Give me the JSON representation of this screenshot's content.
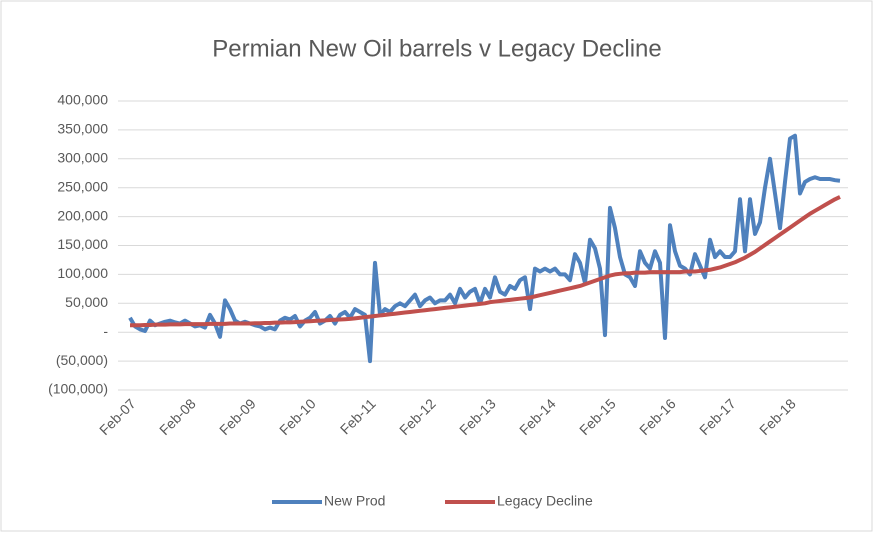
{
  "chart_data": {
    "type": "line",
    "title": "Permian New Oil barrels v Legacy Decline",
    "categories": [
      "Feb-07",
      null,
      null,
      null,
      null,
      null,
      null,
      null,
      null,
      null,
      null,
      null,
      "Feb-08",
      null,
      null,
      null,
      null,
      null,
      null,
      null,
      null,
      null,
      null,
      null,
      "Feb-09",
      null,
      null,
      null,
      null,
      null,
      null,
      null,
      null,
      null,
      null,
      null,
      "Feb-10",
      null,
      null,
      null,
      null,
      null,
      null,
      null,
      null,
      null,
      null,
      null,
      "Feb-11",
      null,
      null,
      null,
      null,
      null,
      null,
      null,
      null,
      null,
      null,
      null,
      "Feb-12",
      null,
      null,
      null,
      null,
      null,
      null,
      null,
      null,
      null,
      null,
      null,
      "Feb-13",
      null,
      null,
      null,
      null,
      null,
      null,
      null,
      null,
      null,
      null,
      null,
      "Feb-14",
      null,
      null,
      null,
      null,
      null,
      null,
      null,
      null,
      null,
      null,
      null,
      "Feb-15",
      null,
      null,
      null,
      null,
      null,
      null,
      null,
      null,
      null,
      null,
      null,
      "Feb-16",
      null,
      null,
      null,
      null,
      null,
      null,
      null,
      null,
      null,
      null,
      null,
      "Feb-17",
      null,
      null,
      null,
      null,
      null,
      null,
      null,
      null,
      null,
      null,
      null,
      "Feb-18",
      null,
      null,
      null,
      null,
      null,
      null,
      null,
      null,
      null,
      null
    ],
    "series": [
      {
        "name": "New Prod",
        "color": "#4f81bd",
        "values": [
          25000,
          10000,
          5000,
          2000,
          20000,
          12000,
          15000,
          18000,
          20000,
          17000,
          15000,
          20000,
          15000,
          10000,
          12000,
          8000,
          30000,
          15000,
          -8000,
          55000,
          40000,
          20000,
          15000,
          18000,
          15000,
          12000,
          10000,
          5000,
          8000,
          5000,
          20000,
          25000,
          22000,
          28000,
          10000,
          20000,
          25000,
          35000,
          15000,
          20000,
          28000,
          15000,
          30000,
          35000,
          25000,
          40000,
          35000,
          30000,
          -50000,
          120000,
          30000,
          40000,
          35000,
          45000,
          50000,
          45000,
          55000,
          65000,
          45000,
          55000,
          60000,
          50000,
          55000,
          55000,
          65000,
          50000,
          75000,
          60000,
          70000,
          75000,
          50000,
          75000,
          60000,
          95000,
          70000,
          65000,
          80000,
          75000,
          90000,
          95000,
          40000,
          110000,
          105000,
          110000,
          105000,
          110000,
          100000,
          100000,
          90000,
          135000,
          120000,
          85000,
          160000,
          145000,
          110000,
          -5000,
          215000,
          180000,
          130000,
          100000,
          95000,
          80000,
          140000,
          120000,
          110000,
          140000,
          120000,
          -10000,
          185000,
          140000,
          115000,
          110000,
          100000,
          135000,
          115000,
          95000,
          160000,
          130000,
          140000,
          130000,
          130000,
          140000,
          230000,
          140000,
          230000,
          170000,
          190000,
          250000,
          300000,
          240000,
          180000,
          260000,
          335000,
          340000,
          240000,
          260000,
          265000,
          268000,
          265000,
          265000,
          265000,
          263000,
          262000
        ]
      },
      {
        "name": "Legacy Decline",
        "color": "#c0504d",
        "values": [
          12000,
          12000,
          12000,
          12500,
          12500,
          13000,
          13000,
          13000,
          13500,
          13500,
          13500,
          14000,
          14000,
          14000,
          14000,
          14000,
          14500,
          14500,
          14500,
          14500,
          15000,
          15000,
          15000,
          15000,
          15000,
          15500,
          15500,
          16000,
          16000,
          16500,
          16500,
          17000,
          17000,
          17500,
          18000,
          18500,
          19000,
          19500,
          20000,
          20500,
          21000,
          21500,
          22000,
          22500,
          23000,
          24000,
          25000,
          26000,
          27000,
          28000,
          29000,
          30000,
          31000,
          32000,
          33000,
          34000,
          35000,
          36000,
          37000,
          38000,
          39000,
          40000,
          41000,
          42000,
          43000,
          44000,
          45000,
          46000,
          47000,
          48000,
          49000,
          50000,
          52000,
          53000,
          54000,
          55000,
          56000,
          57000,
          58000,
          59000,
          60000,
          62000,
          64000,
          66000,
          68000,
          70000,
          72000,
          74000,
          76000,
          78000,
          80000,
          83000,
          86000,
          89000,
          92000,
          95000,
          98000,
          100000,
          101000,
          102000,
          102000,
          103000,
          103000,
          103000,
          104000,
          104000,
          104000,
          104000,
          104000,
          104000,
          104000,
          105000,
          105000,
          105000,
          106000,
          107000,
          108000,
          110000,
          112000,
          115000,
          118000,
          121000,
          125000,
          129000,
          134000,
          139000,
          145000,
          151000,
          157000,
          163000,
          169000,
          175000,
          181000,
          187000,
          193000,
          199000,
          205000,
          210000,
          215000,
          220000,
          225000,
          230000,
          234000
        ]
      }
    ],
    "ylim": [
      -100000,
      400000
    ],
    "yticks": [
      {
        "value": -100000,
        "label": "(100,000)"
      },
      {
        "value": -50000,
        "label": "(50,000)"
      },
      {
        "value": 0,
        "label": "-"
      },
      {
        "value": 50000,
        "label": "50,000"
      },
      {
        "value": 100000,
        "label": "100,000"
      },
      {
        "value": 150000,
        "label": "150,000"
      },
      {
        "value": 200000,
        "label": "200,000"
      },
      {
        "value": 250000,
        "label": "250,000"
      },
      {
        "value": 300000,
        "label": "300,000"
      },
      {
        "value": 350000,
        "label": "350,000"
      },
      {
        "value": 400000,
        "label": "400,000"
      }
    ],
    "grid": true,
    "legend": "bottom"
  }
}
